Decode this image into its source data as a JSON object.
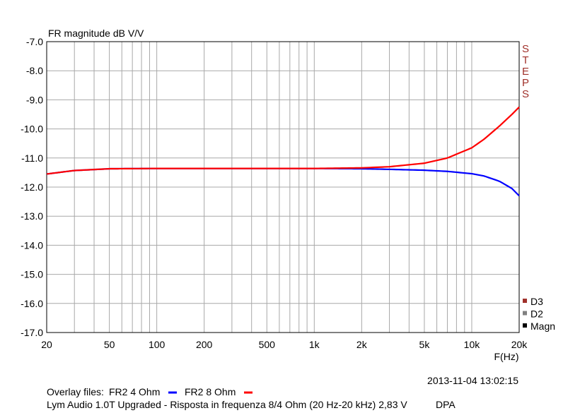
{
  "chart_data": {
    "type": "line",
    "title": "FR magnitude dB V/V",
    "xlabel": "F(Hz)",
    "ylabel": "",
    "x_scale": "log",
    "xlim": [
      20,
      20000
    ],
    "ylim": [
      -17.0,
      -7.0
    ],
    "grid": true,
    "x_tick_labels": [
      {
        "value": 20,
        "label": "20"
      },
      {
        "value": 50,
        "label": "50"
      },
      {
        "value": 100,
        "label": "100"
      },
      {
        "value": 200,
        "label": "200"
      },
      {
        "value": 500,
        "label": "500"
      },
      {
        "value": 1000,
        "label": "1k"
      },
      {
        "value": 2000,
        "label": "2k"
      },
      {
        "value": 5000,
        "label": "5k"
      },
      {
        "value": 10000,
        "label": "10k"
      },
      {
        "value": 20000,
        "label": "20k"
      }
    ],
    "y_tick_labels": [
      "-7.0",
      "-8.0",
      "-9.0",
      "-10.0",
      "-11.0",
      "-12.0",
      "-13.0",
      "-14.0",
      "-15.0",
      "-16.0",
      "-17.0"
    ],
    "series": [
      {
        "name": "FR2 4 Ohm",
        "color": "#0000ff",
        "x": [
          20,
          30,
          50,
          100,
          200,
          500,
          1000,
          2000,
          3000,
          5000,
          7000,
          10000,
          12000,
          15000,
          18000,
          20000
        ],
        "y": [
          -11.55,
          -11.43,
          -11.37,
          -11.36,
          -11.36,
          -11.36,
          -11.36,
          -11.37,
          -11.39,
          -11.42,
          -11.46,
          -11.54,
          -11.62,
          -11.8,
          -12.05,
          -12.3
        ]
      },
      {
        "name": "FR2 8 Ohm",
        "color": "#ff0000",
        "x": [
          20,
          30,
          50,
          100,
          200,
          500,
          1000,
          2000,
          3000,
          5000,
          7000,
          10000,
          12000,
          15000,
          18000,
          20000
        ],
        "y": [
          -11.55,
          -11.43,
          -11.37,
          -11.36,
          -11.36,
          -11.36,
          -11.36,
          -11.34,
          -11.3,
          -11.18,
          -11.0,
          -10.65,
          -10.35,
          -9.9,
          -9.5,
          -9.25
        ]
      }
    ]
  },
  "side_labels": {
    "steps": [
      "S",
      "T",
      "E",
      "P",
      "S"
    ],
    "legend": [
      {
        "label": "D3",
        "color": "#a0302a"
      },
      {
        "label": "D2",
        "color": "#808080"
      },
      {
        "label": "Magn",
        "color": "#000000"
      }
    ]
  },
  "timestamp": "2013-11-04 13:02:15",
  "overlay": {
    "prefix": "Overlay files:",
    "items": [
      {
        "label": "FR2 4 Ohm",
        "color": "#0000ff"
      },
      {
        "label": "FR2 8 Ohm",
        "color": "#ff0000"
      }
    ]
  },
  "caption": "Lym Audio 1.0T Upgraded - Risposta in frequenza 8/4 Ohm (20 Hz-20 kHz) 2,83 V",
  "caption_tag": "DPA"
}
